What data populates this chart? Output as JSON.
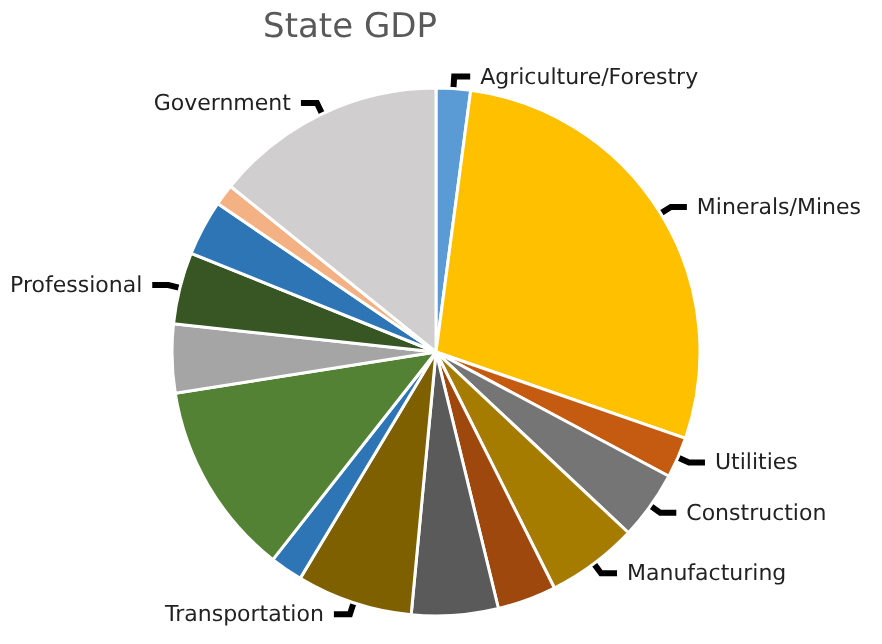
{
  "chart_data": {
    "type": "pie",
    "title": "State GDP",
    "categories": [
      "Agriculture/Forestry",
      "Minerals/Mines",
      "Utilities",
      "Construction",
      "Manufacturing",
      null,
      null,
      "Transportation",
      null,
      null,
      null,
      "Professional",
      null,
      null,
      "Government"
    ],
    "values": [
      2.1,
      28.2,
      2.5,
      4.2,
      5.6,
      3.6,
      5.3,
      7.1,
      2.0,
      11.9,
      4.2,
      4.4,
      3.4,
      1.3,
      14.2
    ],
    "colors": [
      "#5b9bd5",
      "#ffc000",
      "#c55a11",
      "#757575",
      "#a57c00",
      "#9e480e",
      "#5a5a5a",
      "#7f6000",
      "#2e75b6",
      "#548235",
      "#a5a5a5",
      "#375623",
      "#2e75b6",
      "#f4b183",
      "#d0cece"
    ],
    "legend": false
  }
}
